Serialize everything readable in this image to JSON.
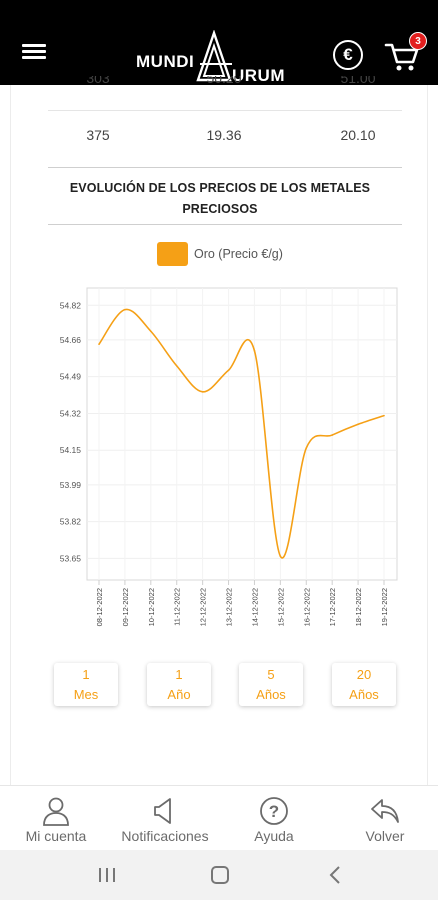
{
  "header": {
    "logo_word_1": "MUNDI",
    "logo_word_2": "URUM",
    "currency_symbol": "€",
    "cart_count": "3"
  },
  "table": {
    "partial_row": [
      "303",
      "50.20",
      "51.00"
    ],
    "row": [
      "375",
      "19.36",
      "20.10"
    ]
  },
  "section": {
    "title": "EVOLUCIÓN DE LOS PRECIOS DE LOS METALES PRECIOSOS"
  },
  "chart_data": {
    "type": "line",
    "title": "",
    "xlabel": "",
    "ylabel": "",
    "legend": "top-center",
    "grid": true,
    "ylim": [
      53.55,
      54.9
    ],
    "y_ticks": [
      "53.65",
      "53.82",
      "53.99",
      "54.15",
      "54.32",
      "54.49",
      "54.66",
      "54.82"
    ],
    "x": [
      "08-12-2022",
      "09-12-2022",
      "10-12-2022",
      "11-12-2022",
      "12-12-2022",
      "13-12-2022",
      "14-12-2022",
      "15-12-2022",
      "16-12-2022",
      "17-12-2022",
      "18-12-2022",
      "19-12-2022"
    ],
    "series": [
      {
        "name": "Oro (Precio €/g)",
        "color": "#f5a016",
        "values": [
          54.64,
          54.8,
          54.7,
          54.54,
          54.42,
          54.52,
          54.61,
          53.66,
          54.16,
          54.22,
          54.27,
          54.31
        ]
      }
    ]
  },
  "periods": [
    {
      "number": "1",
      "unit": "Mes"
    },
    {
      "number": "1",
      "unit": "Año"
    },
    {
      "number": "5",
      "unit": "Años"
    },
    {
      "number": "20",
      "unit": "Años"
    }
  ],
  "nav": {
    "account": "Mi cuenta",
    "notifications": "Notificaciones",
    "help": "Ayuda",
    "back": "Volver"
  },
  "colors": {
    "accent": "#f5a016",
    "topbar": "#000000",
    "badge": "#e21f1f"
  }
}
